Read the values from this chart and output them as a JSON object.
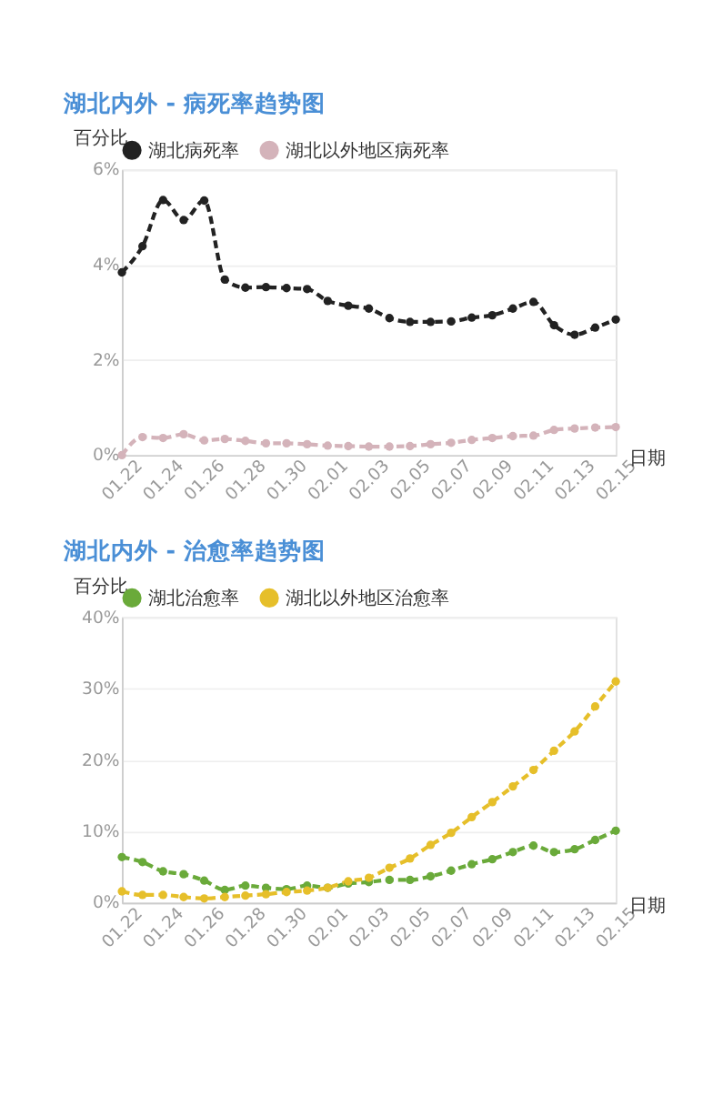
{
  "chart_data": [
    {
      "type": "line",
      "title": "湖北内外 - 病死率趋势图",
      "ylabel": "百分比",
      "xlabel": "日期",
      "categories": [
        "01.22",
        null,
        "01.24",
        null,
        "01.26",
        null,
        "01.28",
        null,
        "01.30",
        null,
        "02.01",
        null,
        "02.03",
        null,
        "02.05",
        null,
        "02.07",
        null,
        "02.09",
        null,
        "02.11",
        null,
        "02.13",
        null,
        "02.15"
      ],
      "series": [
        {
          "name": "湖北病死率",
          "color": "#222222",
          "values": [
            3.84,
            4.39,
            5.36,
            4.94,
            5.35,
            3.69,
            3.52,
            3.53,
            3.51,
            3.49,
            3.24,
            3.14,
            3.08,
            2.88,
            2.8,
            2.8,
            2.81,
            2.89,
            2.94,
            3.08,
            3.22,
            2.73,
            2.53,
            2.68,
            2.85
          ]
        },
        {
          "name": "湖北以外地区病死率",
          "color": "#d4b3ba",
          "values": [
            0,
            0.38,
            0.36,
            0.44,
            0.31,
            0.34,
            0.3,
            0.25,
            0.25,
            0.23,
            0.2,
            0.19,
            0.18,
            0.18,
            0.19,
            0.23,
            0.26,
            0.32,
            0.36,
            0.4,
            0.41,
            0.53,
            0.56,
            0.58,
            0.59
          ]
        }
      ],
      "ylim": [
        0,
        6
      ],
      "yticks": [
        {
          "value": 0,
          "label": "0%"
        },
        {
          "value": 2,
          "label": "2%"
        },
        {
          "value": 4,
          "label": "4%"
        },
        {
          "value": 6,
          "label": "6%"
        }
      ],
      "grid": "y",
      "legend": "top",
      "marker": "circle",
      "line_style": "dashed"
    },
    {
      "type": "line",
      "title": "湖北内外 - 治愈率趋势图",
      "ylabel": "百分比",
      "xlabel": "日期",
      "categories": [
        "01.22",
        null,
        "01.24",
        null,
        "01.26",
        null,
        "01.28",
        null,
        "01.30",
        null,
        "02.01",
        null,
        "02.03",
        null,
        "02.05",
        null,
        "02.07",
        null,
        "02.09",
        null,
        "02.11",
        null,
        "02.13",
        null,
        "02.15"
      ],
      "series": [
        {
          "name": "湖北治愈率",
          "color": "#6aaa3a",
          "values": [
            6.4,
            5.7,
            4.4,
            4.0,
            3.1,
            1.8,
            2.4,
            2.1,
            1.9,
            2.4,
            2.1,
            2.7,
            2.9,
            3.2,
            3.2,
            3.7,
            4.5,
            5.4,
            6.1,
            7.1,
            8.0,
            7.1,
            7.5,
            8.8,
            10.1
          ]
        },
        {
          "name": "湖北以外地区治愈率",
          "color": "#e6bf2a",
          "values": [
            1.6,
            1.1,
            1.1,
            0.8,
            0.6,
            0.8,
            1.0,
            1.2,
            1.5,
            1.7,
            2.1,
            3.0,
            3.5,
            4.9,
            6.2,
            8.1,
            9.8,
            12.0,
            14.1,
            16.3,
            18.6,
            21.3,
            24.0,
            27.5,
            31.0
          ]
        }
      ],
      "ylim": [
        0,
        40
      ],
      "yticks": [
        {
          "value": 0,
          "label": "0%"
        },
        {
          "value": 10,
          "label": "10%"
        },
        {
          "value": 20,
          "label": "20%"
        },
        {
          "value": 30,
          "label": "30%"
        },
        {
          "value": 40,
          "label": "40%"
        }
      ],
      "grid": "y",
      "legend": "top",
      "marker": "circle",
      "line_style": "dashed"
    }
  ]
}
